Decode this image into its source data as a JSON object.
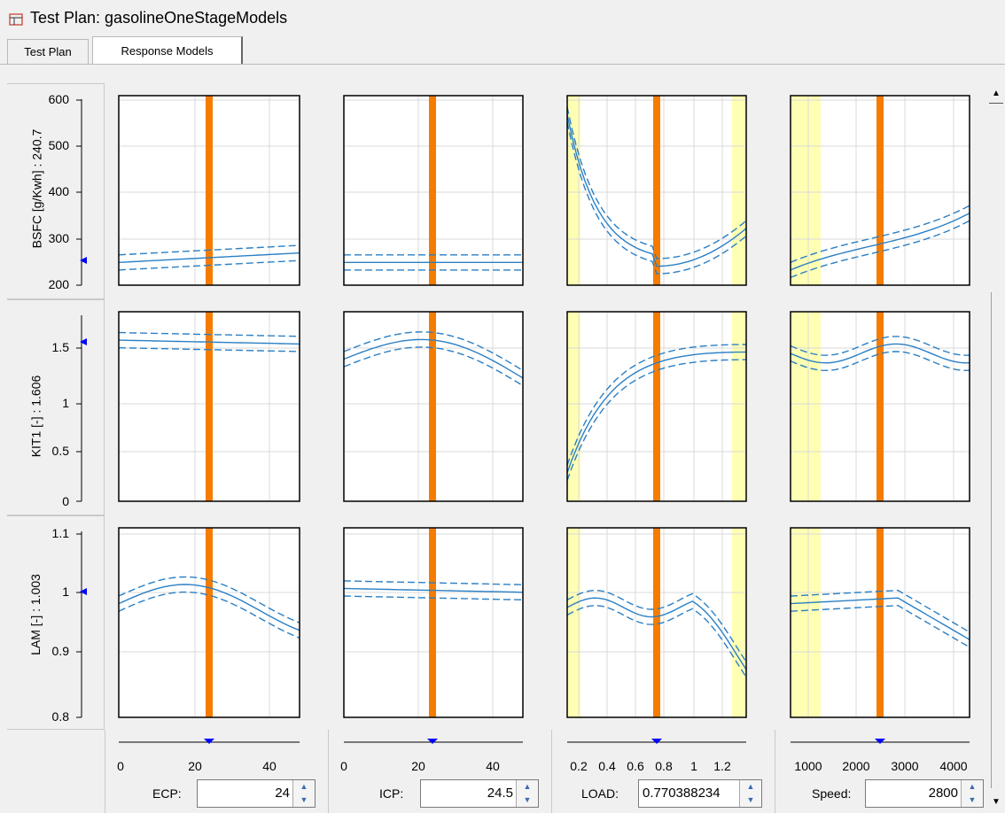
{
  "window": {
    "title": "Test Plan: gasolineOneStageModels"
  },
  "tabs": [
    {
      "label": "Test Plan"
    },
    {
      "label": "Response Models"
    }
  ],
  "responses": [
    {
      "label": "BSFC [g/Kwh] : 240.7",
      "ticks": [
        "600",
        "500",
        "400",
        "300",
        "200"
      ]
    },
    {
      "label": "KIT1 [-] : 1.606",
      "ticks": [
        "1.5",
        "1",
        "0.5",
        "0"
      ]
    },
    {
      "label": "LAM [-] : 1.003",
      "ticks": [
        "1.1",
        "1",
        "0.9",
        "0.8"
      ]
    }
  ],
  "factors": [
    {
      "name": "ECP:",
      "value": "24",
      "ticks": [
        "0",
        "20",
        "40"
      ]
    },
    {
      "name": "ICP:",
      "value": "24.5",
      "ticks": [
        "0",
        "20",
        "40"
      ]
    },
    {
      "name": "LOAD:",
      "value": "0.770388234",
      "ticks": [
        "0.2",
        "0.4",
        "0.6",
        "0.8",
        "1",
        "1.2"
      ]
    },
    {
      "name": "Speed:",
      "value": "2800",
      "ticks": [
        "1000",
        "2000",
        "3000",
        "4000"
      ]
    }
  ],
  "colors": {
    "model": "#2a7fc4",
    "cursor": "#f57c00",
    "excluded": "#ffffb3",
    "marker": "#0000ff"
  }
}
